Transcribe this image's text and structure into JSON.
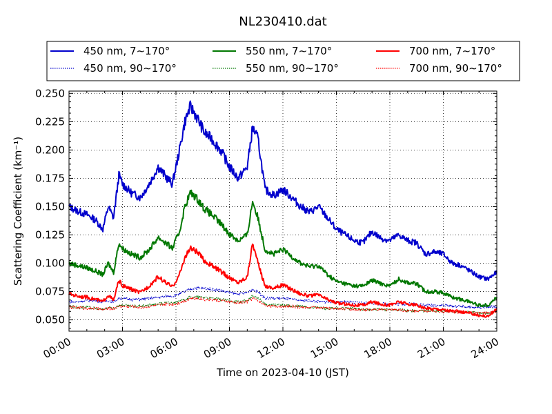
{
  "chart_data": {
    "type": "line",
    "title": "NL230410.dat",
    "xlabel": "Time on 2023-04-10 (JST)",
    "ylabel": "Scattering Coefficient (km⁻¹)",
    "xlim": [
      0,
      24
    ],
    "ylim": [
      0.04,
      0.252
    ],
    "x_ticks": [
      0,
      3,
      6,
      9,
      12,
      15,
      18,
      21,
      24
    ],
    "x_tick_labels": [
      "00:00",
      "03:00",
      "06:00",
      "09:00",
      "12:00",
      "15:00",
      "18:00",
      "21:00",
      "24:00"
    ],
    "y_ticks": [
      0.05,
      0.075,
      0.1,
      0.125,
      0.15,
      0.175,
      0.2,
      0.225,
      0.25
    ],
    "y_tick_labels": [
      "0.050",
      "0.075",
      "0.100",
      "0.125",
      "0.150",
      "0.175",
      "0.200",
      "0.225",
      "0.250"
    ],
    "grid": true,
    "legend_position": "top-outside",
    "x": [
      0,
      0.5,
      1,
      1.5,
      1.9,
      2.2,
      2.5,
      2.8,
      3,
      3.5,
      4,
      4.5,
      5,
      5.5,
      5.8,
      6.2,
      6.5,
      6.8,
      7,
      7.3,
      7.6,
      8,
      8.5,
      9,
      9.5,
      10,
      10.3,
      10.6,
      11,
      11.5,
      12,
      12.5,
      13,
      13.5,
      14,
      14.5,
      15,
      15.5,
      16,
      16.5,
      17,
      17.5,
      18,
      18.5,
      19,
      19.5,
      20,
      20.5,
      21,
      21.5,
      22,
      22.5,
      23,
      23.5,
      24
    ],
    "series": [
      {
        "name": "450 nm, 7∼170°",
        "color": "#0000cc",
        "style": "solid",
        "values": [
          0.15,
          0.146,
          0.143,
          0.138,
          0.13,
          0.15,
          0.14,
          0.178,
          0.17,
          0.162,
          0.158,
          0.17,
          0.185,
          0.175,
          0.17,
          0.2,
          0.225,
          0.238,
          0.234,
          0.225,
          0.215,
          0.21,
          0.2,
          0.185,
          0.175,
          0.185,
          0.22,
          0.21,
          0.165,
          0.16,
          0.165,
          0.158,
          0.15,
          0.145,
          0.15,
          0.14,
          0.13,
          0.125,
          0.12,
          0.118,
          0.128,
          0.122,
          0.12,
          0.125,
          0.12,
          0.118,
          0.108,
          0.11,
          0.108,
          0.1,
          0.098,
          0.093,
          0.088,
          0.086,
          0.092
        ]
      },
      {
        "name": "450 nm, 90∼170°",
        "color": "#0000cc",
        "style": "dotted",
        "values": [
          0.066,
          0.066,
          0.067,
          0.067,
          0.066,
          0.067,
          0.066,
          0.069,
          0.069,
          0.068,
          0.068,
          0.069,
          0.07,
          0.071,
          0.071,
          0.073,
          0.075,
          0.077,
          0.078,
          0.078,
          0.078,
          0.077,
          0.076,
          0.074,
          0.073,
          0.074,
          0.077,
          0.075,
          0.069,
          0.069,
          0.069,
          0.068,
          0.067,
          0.067,
          0.066,
          0.066,
          0.066,
          0.066,
          0.065,
          0.065,
          0.065,
          0.064,
          0.064,
          0.064,
          0.064,
          0.064,
          0.063,
          0.063,
          0.063,
          0.062,
          0.062,
          0.061,
          0.061,
          0.061,
          0.062
        ]
      },
      {
        "name": "550 nm, 7∼170°",
        "color": "#007700",
        "style": "solid",
        "values": [
          0.1,
          0.098,
          0.096,
          0.093,
          0.09,
          0.1,
          0.092,
          0.118,
          0.113,
          0.108,
          0.105,
          0.112,
          0.123,
          0.117,
          0.113,
          0.128,
          0.15,
          0.162,
          0.16,
          0.155,
          0.148,
          0.143,
          0.135,
          0.126,
          0.12,
          0.125,
          0.155,
          0.14,
          0.112,
          0.108,
          0.112,
          0.106,
          0.1,
          0.097,
          0.098,
          0.09,
          0.084,
          0.082,
          0.08,
          0.08,
          0.085,
          0.082,
          0.08,
          0.086,
          0.083,
          0.082,
          0.075,
          0.075,
          0.074,
          0.07,
          0.068,
          0.066,
          0.063,
          0.063,
          0.07
        ]
      },
      {
        "name": "550 nm, 90∼170°",
        "color": "#007700",
        "style": "dotted",
        "values": [
          0.062,
          0.061,
          0.061,
          0.06,
          0.059,
          0.061,
          0.06,
          0.063,
          0.063,
          0.062,
          0.062,
          0.063,
          0.064,
          0.065,
          0.065,
          0.066,
          0.068,
          0.07,
          0.07,
          0.07,
          0.07,
          0.069,
          0.068,
          0.067,
          0.066,
          0.067,
          0.071,
          0.069,
          0.064,
          0.063,
          0.063,
          0.062,
          0.062,
          0.061,
          0.061,
          0.06,
          0.06,
          0.06,
          0.06,
          0.059,
          0.059,
          0.059,
          0.059,
          0.059,
          0.058,
          0.058,
          0.058,
          0.058,
          0.058,
          0.057,
          0.057,
          0.057,
          0.056,
          0.056,
          0.057
        ]
      },
      {
        "name": "700 nm, 7∼170°",
        "color": "#ff0000",
        "style": "solid",
        "values": [
          0.073,
          0.071,
          0.07,
          0.068,
          0.066,
          0.072,
          0.067,
          0.085,
          0.08,
          0.077,
          0.074,
          0.08,
          0.088,
          0.082,
          0.079,
          0.09,
          0.105,
          0.113,
          0.112,
          0.108,
          0.102,
          0.098,
          0.093,
          0.087,
          0.083,
          0.088,
          0.118,
          0.1,
          0.08,
          0.078,
          0.081,
          0.077,
          0.073,
          0.071,
          0.072,
          0.068,
          0.065,
          0.064,
          0.063,
          0.063,
          0.066,
          0.064,
          0.063,
          0.066,
          0.064,
          0.063,
          0.06,
          0.06,
          0.059,
          0.058,
          0.057,
          0.056,
          0.054,
          0.053,
          0.06
        ]
      },
      {
        "name": "700 nm, 90∼170°",
        "color": "#ff0000",
        "style": "dotted",
        "values": [
          0.061,
          0.061,
          0.06,
          0.06,
          0.059,
          0.06,
          0.06,
          0.062,
          0.062,
          0.062,
          0.061,
          0.062,
          0.063,
          0.064,
          0.064,
          0.065,
          0.067,
          0.069,
          0.069,
          0.069,
          0.068,
          0.068,
          0.067,
          0.066,
          0.065,
          0.066,
          0.069,
          0.067,
          0.063,
          0.062,
          0.062,
          0.062,
          0.061,
          0.061,
          0.061,
          0.06,
          0.06,
          0.06,
          0.059,
          0.059,
          0.059,
          0.059,
          0.059,
          0.059,
          0.058,
          0.058,
          0.058,
          0.058,
          0.057,
          0.057,
          0.057,
          0.056,
          0.056,
          0.056,
          0.057
        ]
      }
    ]
  }
}
